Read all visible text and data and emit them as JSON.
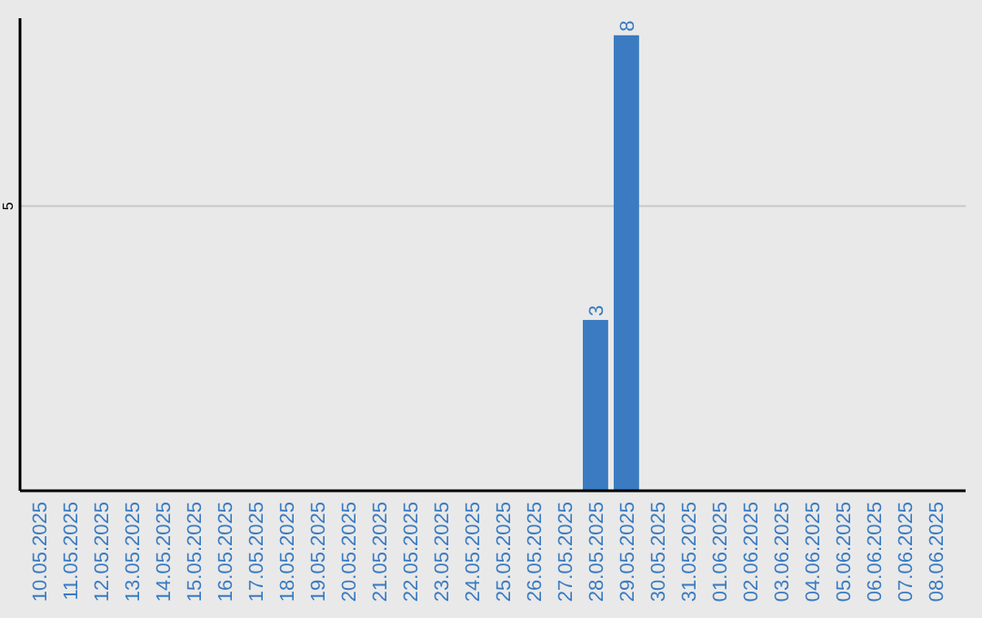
{
  "chart_data": {
    "type": "bar",
    "categories": [
      "10.05.2025",
      "11.05.2025",
      "12.05.2025",
      "13.05.2025",
      "14.05.2025",
      "15.05.2025",
      "16.05.2025",
      "17.05.2025",
      "18.05.2025",
      "19.05.2025",
      "20.05.2025",
      "21.05.2025",
      "22.05.2025",
      "23.05.2025",
      "24.05.2025",
      "25.05.2025",
      "26.05.2025",
      "27.05.2025",
      "28.05.2025",
      "29.05.2025",
      "30.05.2025",
      "31.05.2025",
      "01.06.2025",
      "02.06.2025",
      "03.06.2025",
      "04.06.2025",
      "05.06.2025",
      "06.06.2025",
      "07.06.2025",
      "08.06.2025"
    ],
    "values": [
      null,
      null,
      null,
      null,
      null,
      null,
      null,
      null,
      null,
      null,
      null,
      null,
      null,
      null,
      null,
      null,
      null,
      null,
      3,
      8,
      null,
      null,
      null,
      null,
      null,
      null,
      null,
      null,
      null,
      null
    ],
    "color": "#3a7bc1",
    "ylim": [
      0,
      8.3
    ],
    "yticks": [
      5
    ],
    "grid": "y",
    "data_labels": true
  }
}
